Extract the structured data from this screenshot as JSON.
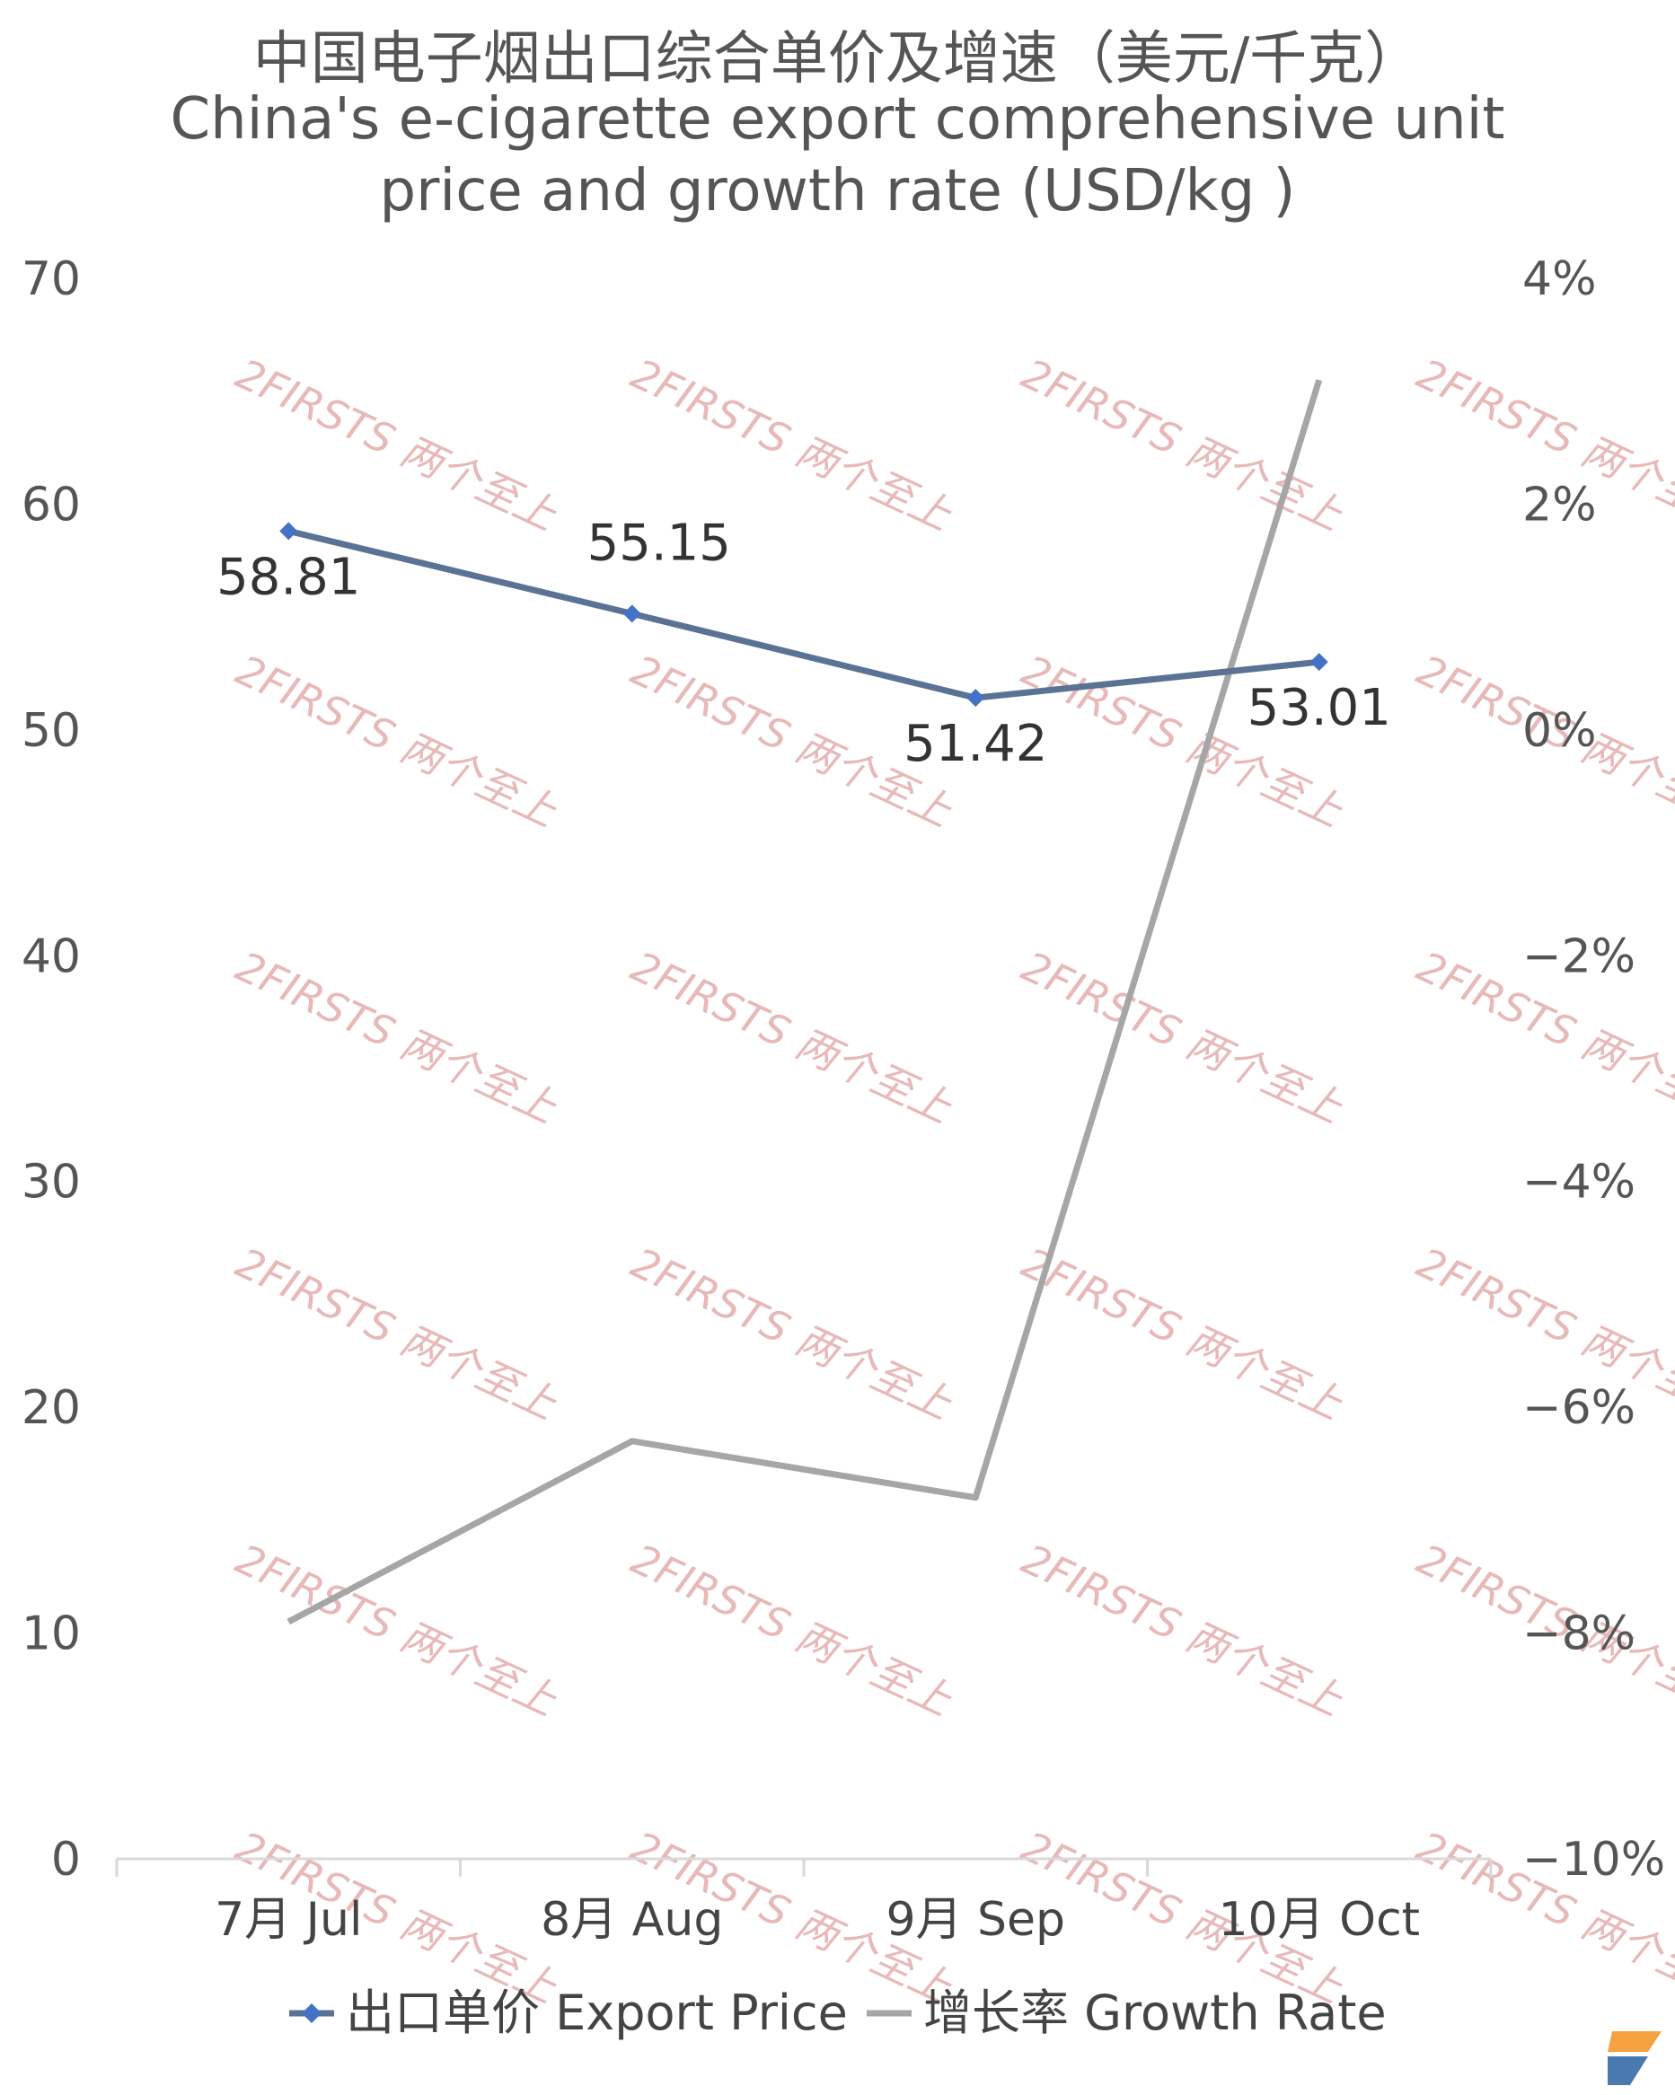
{
  "chart_data": {
    "type": "line",
    "title": "中国电子烟出口综合单价及增速（美元/千克）",
    "subtitle_line1": "China's e-cigarette export comprehensive unit",
    "subtitle_line2": "price and growth rate (USD/kg )",
    "categories": [
      "7月 Jul",
      "8月 Aug",
      "9月 Sep",
      "10月 Oct"
    ],
    "y_left": {
      "min": 0,
      "max": 70,
      "ticks": [
        "0",
        "10",
        "20",
        "30",
        "40",
        "50",
        "60",
        "70"
      ]
    },
    "y_right": {
      "min": -10,
      "max": 4,
      "ticks": [
        "−10%",
        "−8%",
        "−6%",
        "−4%",
        "−2%",
        "0%",
        "2%",
        "4%"
      ]
    },
    "series": [
      {
        "name": "出口单价 Export Price",
        "axis": "left",
        "color": "#5a7394",
        "marker_color": "#4472c4",
        "values": [
          58.81,
          55.15,
          51.42,
          53.01
        ],
        "labels": [
          "58.81",
          "55.15",
          "51.42",
          "53.01"
        ]
      },
      {
        "name": "增长率 Growth Rate",
        "axis": "right",
        "color": "#a6a6a6",
        "values": [
          -7.9,
          -6.3,
          -6.8,
          3.1
        ]
      }
    ],
    "grid": false,
    "legend_position": "bottom",
    "watermark": "2FIRSTS 两个至上"
  }
}
